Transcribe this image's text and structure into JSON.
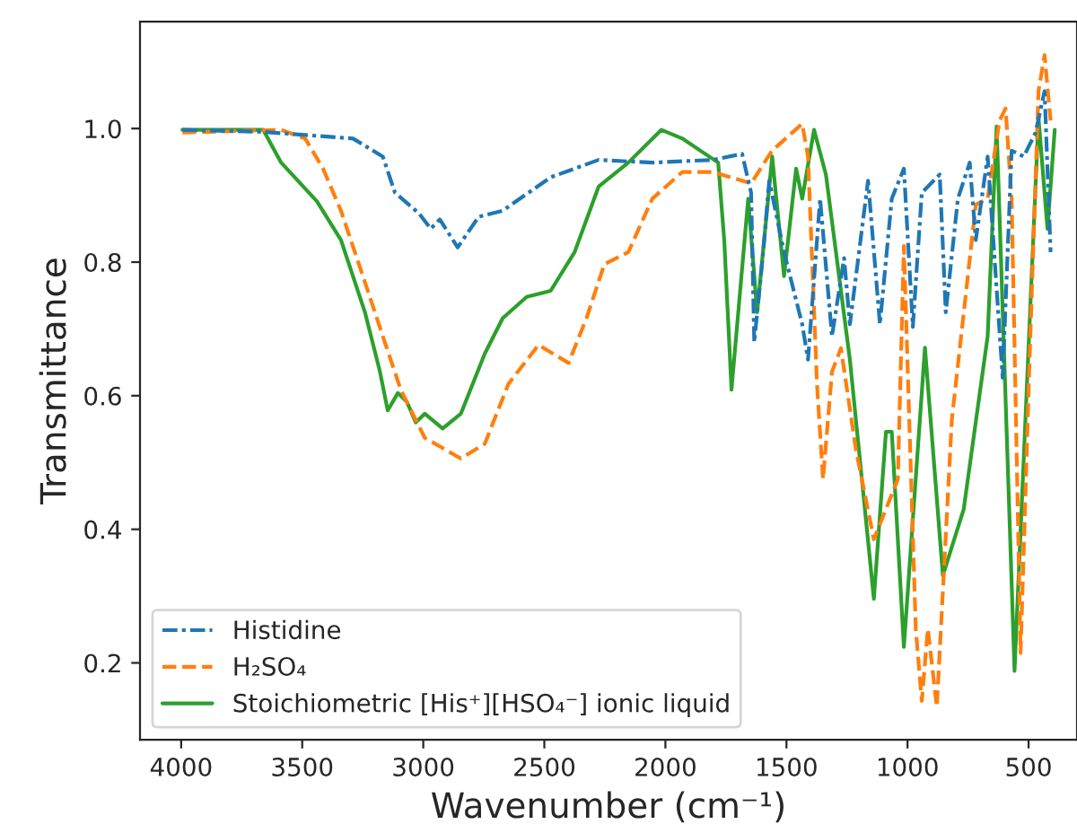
{
  "chart_data": {
    "type": "line",
    "xlabel": "Wavenumber (cm⁻¹)",
    "ylabel": "Transmittance",
    "xlim": [
      4170,
      300
    ],
    "xticks": [
      4000,
      3500,
      3000,
      2500,
      2000,
      1500,
      1000,
      500
    ],
    "ylim": [
      0.085,
      1.16
    ],
    "yticks": [
      {
        "value": 0.2,
        "label": "0.2"
      },
      {
        "value": 0.4,
        "label": "0.4"
      },
      {
        "value": 0.6,
        "label": "0.6"
      },
      {
        "value": 0.8,
        "label": "0.8"
      },
      {
        "value": 1.0,
        "label": "1.0"
      }
    ],
    "legend": "bottom left",
    "grid": false,
    "series": [
      {
        "name": "Histidine",
        "color": "#1f77b4",
        "line_style": "dashdot",
        "x": [
          3995,
          3661,
          3290,
          3167,
          3117,
          3018,
          2969,
          2932,
          2858,
          2771,
          2672,
          2474,
          2276,
          2054,
          1806,
          1683,
          1646,
          1633,
          1596,
          1571,
          1510,
          1435,
          1411,
          1361,
          1312,
          1262,
          1238,
          1163,
          1114,
          1065,
          1015,
          978,
          941,
          867,
          842,
          792,
          743,
          718,
          669,
          607,
          570,
          520,
          471,
          434,
          409
        ],
        "values": [
          0.998,
          0.995,
          0.985,
          0.958,
          0.904,
          0.873,
          0.85,
          0.864,
          0.822,
          0.868,
          0.877,
          0.927,
          0.953,
          0.949,
          0.953,
          0.962,
          0.904,
          0.68,
          0.815,
          0.922,
          0.815,
          0.707,
          0.654,
          0.895,
          0.689,
          0.806,
          0.707,
          0.922,
          0.707,
          0.895,
          0.94,
          0.703,
          0.904,
          0.931,
          0.725,
          0.895,
          0.949,
          0.833,
          0.958,
          0.627,
          0.967,
          0.958,
          0.994,
          1.056,
          0.815
        ]
      },
      {
        "name": "H₂SO₄",
        "color": "#ff7f0e",
        "line_style": "dashed",
        "x": [
          3995,
          3587,
          3488,
          3414,
          3340,
          3241,
          3167,
          3093,
          2994,
          2845,
          2746,
          2648,
          2524,
          2400,
          2326,
          2252,
          2153,
          2054,
          1930,
          1806,
          1646,
          1559,
          1435,
          1411,
          1374,
          1349,
          1312,
          1275,
          1213,
          1139,
          1040,
          1015,
          966,
          941,
          916,
          879,
          817,
          718,
          669,
          620,
          595,
          570,
          533,
          496,
          459,
          434,
          409
        ],
        "values": [
          0.994,
          0.998,
          0.985,
          0.94,
          0.877,
          0.77,
          0.689,
          0.609,
          0.537,
          0.506,
          0.528,
          0.618,
          0.676,
          0.649,
          0.716,
          0.797,
          0.815,
          0.895,
          0.935,
          0.935,
          0.918,
          0.967,
          1.007,
          0.958,
          0.618,
          0.475,
          0.636,
          0.671,
          0.519,
          0.385,
          0.475,
          0.824,
          0.251,
          0.143,
          0.251,
          0.134,
          0.564,
          0.886,
          0.895,
          1.012,
          1.03,
          0.895,
          0.215,
          0.654,
          1.056,
          1.11,
          1.012
        ]
      },
      {
        "name": "Stoichiometric [His⁺][HSO₄⁻] ionic liquid",
        "color": "#2ca02c",
        "line_style": "solid",
        "x": [
          3995,
          3661,
          3587,
          3439,
          3340,
          3241,
          3179,
          3147,
          3105,
          3068,
          3031,
          2994,
          2920,
          2845,
          2746,
          2672,
          2573,
          2474,
          2375,
          2276,
          2153,
          2017,
          1930,
          1782,
          1757,
          1727,
          1658,
          1621,
          1559,
          1510,
          1460,
          1435,
          1386,
          1337,
          1238,
          1139,
          1089,
          1065,
          1015,
          928,
          854,
          768,
          669,
          632,
          558,
          459,
          422,
          392
        ],
        "values": [
          0.998,
          0.998,
          0.949,
          0.891,
          0.833,
          0.725,
          0.636,
          0.578,
          0.604,
          0.591,
          0.56,
          0.573,
          0.551,
          0.573,
          0.663,
          0.716,
          0.748,
          0.757,
          0.815,
          0.913,
          0.949,
          0.998,
          0.985,
          0.949,
          0.833,
          0.609,
          0.895,
          0.725,
          0.958,
          0.779,
          0.94,
          0.895,
          0.998,
          0.931,
          0.654,
          0.296,
          0.546,
          0.546,
          0.224,
          0.672,
          0.331,
          0.43,
          0.689,
          1.003,
          0.188,
          1.016,
          0.85,
          0.998
        ]
      }
    ]
  }
}
